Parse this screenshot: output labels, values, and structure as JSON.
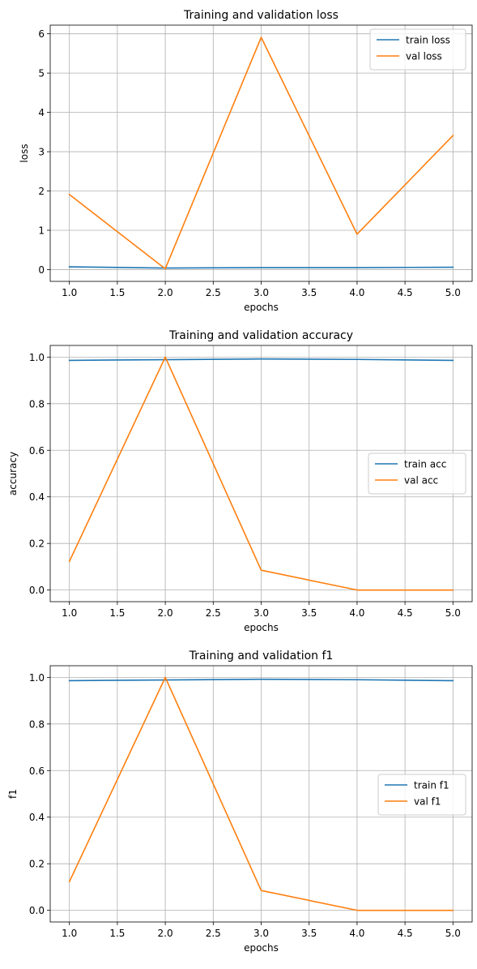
{
  "figure": {
    "background": "#ffffff"
  },
  "colors": {
    "train": "#1f77b4",
    "val": "#ff7f0e",
    "grid": "#b0b0b0",
    "axis": "#000000",
    "legend_border": "#cccccc"
  },
  "chart_data": [
    {
      "type": "line",
      "title": "Training and validation loss",
      "xlabel": "epochs",
      "ylabel": "loss",
      "x": [
        1,
        2,
        3,
        4,
        5
      ],
      "xlim": [
        0.8,
        5.2
      ],
      "ylim": [
        -0.3,
        6.22
      ],
      "xticks": [
        1.0,
        1.5,
        2.0,
        2.5,
        3.0,
        3.5,
        4.0,
        4.5,
        5.0
      ],
      "xtick_labels": [
        "1.0",
        "1.5",
        "2.0",
        "2.5",
        "3.0",
        "3.5",
        "4.0",
        "4.5",
        "5.0"
      ],
      "yticks": [
        0,
        1,
        2,
        3,
        4,
        5,
        6
      ],
      "ytick_labels": [
        "0",
        "1",
        "2",
        "3",
        "4",
        "5",
        "6"
      ],
      "grid": true,
      "legend": "upper right",
      "series": [
        {
          "name": "train loss",
          "values": [
            0.07,
            0.04,
            0.05,
            0.05,
            0.06
          ]
        },
        {
          "name": "val loss",
          "values": [
            1.91,
            0.02,
            5.91,
            0.9,
            3.41
          ]
        }
      ]
    },
    {
      "type": "line",
      "title": "Training and validation accuracy",
      "xlabel": "epochs",
      "ylabel": "accuracy",
      "x": [
        1,
        2,
        3,
        4,
        5
      ],
      "xlim": [
        0.8,
        5.2
      ],
      "ylim": [
        -0.05,
        1.05
      ],
      "xticks": [
        1.0,
        1.5,
        2.0,
        2.5,
        3.0,
        3.5,
        4.0,
        4.5,
        5.0
      ],
      "xtick_labels": [
        "1.0",
        "1.5",
        "2.0",
        "2.5",
        "3.0",
        "3.5",
        "4.0",
        "4.5",
        "5.0"
      ],
      "yticks": [
        0,
        0.2,
        0.4,
        0.6,
        0.8,
        1.0
      ],
      "ytick_labels": [
        "0.0",
        "0.2",
        "0.4",
        "0.6",
        "0.8",
        "1.0"
      ],
      "grid": true,
      "legend": "center right",
      "series": [
        {
          "name": "train acc",
          "values": [
            0.986,
            0.989,
            0.992,
            0.99,
            0.986
          ]
        },
        {
          "name": "val acc",
          "values": [
            0.123,
            1.0,
            0.085,
            0.0,
            0.0
          ]
        }
      ]
    },
    {
      "type": "line",
      "title": "Training and validation f1",
      "xlabel": "epochs",
      "ylabel": "f1",
      "x": [
        1,
        2,
        3,
        4,
        5
      ],
      "xlim": [
        0.8,
        5.2
      ],
      "ylim": [
        -0.05,
        1.05
      ],
      "xticks": [
        1.0,
        1.5,
        2.0,
        2.5,
        3.0,
        3.5,
        4.0,
        4.5,
        5.0
      ],
      "xtick_labels": [
        "1.0",
        "1.5",
        "2.0",
        "2.5",
        "3.0",
        "3.5",
        "4.0",
        "4.5",
        "5.0"
      ],
      "yticks": [
        0,
        0.2,
        0.4,
        0.6,
        0.8,
        1.0
      ],
      "ytick_labels": [
        "0.0",
        "0.2",
        "0.4",
        "0.6",
        "0.8",
        "1.0"
      ],
      "grid": true,
      "legend": "center right",
      "series": [
        {
          "name": "train f1",
          "values": [
            0.986,
            0.989,
            0.992,
            0.99,
            0.986
          ]
        },
        {
          "name": "val f1",
          "values": [
            0.123,
            1.0,
            0.085,
            0.0,
            0.0
          ]
        }
      ]
    }
  ]
}
